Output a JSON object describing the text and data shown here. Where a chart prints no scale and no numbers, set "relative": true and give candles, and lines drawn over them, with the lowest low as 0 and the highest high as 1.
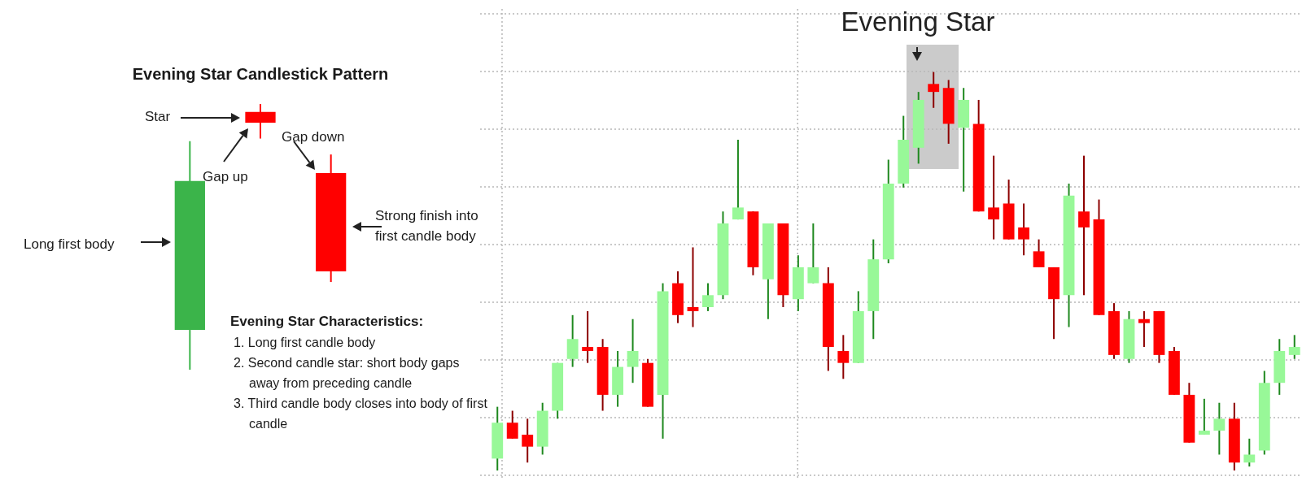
{
  "chart_data": [
    {
      "type": "candlestick",
      "title": "Evening Star Candlestick Pattern",
      "relative": true,
      "categories": [
        null,
        null,
        null
      ],
      "ohlc": [
        [
          0.15,
          0.86,
          0,
          0.71
        ],
        [
          0.97,
          1,
          0.87,
          0.93
        ],
        [
          0.74,
          0.81,
          0.33,
          0.37
        ]
      ],
      "colors": [
        "#3bb44a",
        "#ff0000",
        "#ff0000"
      ],
      "annotations": [
        "Star",
        "Gap up",
        "Gap down",
        "Long first body",
        "Strong finish into first candle body",
        "Evening Star Characteristics:",
        "1. Long first candle body",
        "2. Second candle star: short body gaps away from preceding candle",
        "3. Third candle body closes into body of first candle"
      ]
    },
    {
      "type": "candlestick",
      "relative": true,
      "grid": true,
      "categories": [
        null,
        null,
        null,
        null,
        null,
        null,
        null,
        null,
        null,
        null,
        null,
        null,
        null,
        null,
        null,
        null,
        null,
        null,
        null,
        null,
        null,
        null,
        null,
        null,
        null,
        null,
        null,
        null,
        null,
        null,
        null,
        null,
        null,
        null,
        null,
        null,
        null,
        null,
        null,
        null,
        null,
        null,
        null,
        null,
        null,
        null,
        null,
        null,
        null,
        null,
        null,
        null,
        null,
        null
      ],
      "ohlc": [
        [
          0.03,
          0.16,
          0,
          0.12
        ],
        [
          0.12,
          0.15,
          0.08,
          0.08
        ],
        [
          0.09,
          0.13,
          0.02,
          0.06
        ],
        [
          0.06,
          0.17,
          0.04,
          0.15
        ],
        [
          0.15,
          0.27,
          0.13,
          0.27
        ],
        [
          0.28,
          0.39,
          0.26,
          0.33
        ],
        [
          0.31,
          0.4,
          0.27,
          0.3
        ],
        [
          0.31,
          0.33,
          0.15,
          0.19
        ],
        [
          0.19,
          0.3,
          0.16,
          0.26
        ],
        [
          0.26,
          0.38,
          0.22,
          0.3
        ],
        [
          0.27,
          0.28,
          0.16,
          0.16
        ],
        [
          0.19,
          0.47,
          0.08,
          0.45
        ],
        [
          0.47,
          0.5,
          0.37,
          0.39
        ],
        [
          0.41,
          0.56,
          0.36,
          0.4
        ],
        [
          0.41,
          0.47,
          0.4,
          0.44
        ],
        [
          0.44,
          0.65,
          0.43,
          0.62
        ],
        [
          0.63,
          0.83,
          0.63,
          0.66
        ],
        [
          0.65,
          0.65,
          0.49,
          0.51
        ],
        [
          0.48,
          0.62,
          0.38,
          0.62
        ],
        [
          0.62,
          0.62,
          0.41,
          0.44
        ],
        [
          0.43,
          0.54,
          0.4,
          0.51
        ],
        [
          0.47,
          0.62,
          0.47,
          0.51
        ],
        [
          0.47,
          0.51,
          0.25,
          0.31
        ],
        [
          0.3,
          0.34,
          0.23,
          0.27
        ],
        [
          0.27,
          0.45,
          0.27,
          0.4
        ],
        [
          0.4,
          0.58,
          0.33,
          0.53
        ],
        [
          0.53,
          0.78,
          0.52,
          0.72
        ],
        [
          0.72,
          0.89,
          0.71,
          0.83
        ],
        [
          0.81,
          0.95,
          0.77,
          0.93
        ],
        [
          0.97,
          1,
          0.91,
          0.95
        ],
        [
          0.96,
          0.98,
          0.82,
          0.87
        ],
        [
          0.86,
          0.96,
          0.7,
          0.93
        ],
        [
          0.87,
          0.93,
          0.65,
          0.65
        ],
        [
          0.66,
          0.79,
          0.58,
          0.63
        ],
        [
          0.67,
          0.73,
          0.58,
          0.58
        ],
        [
          0.61,
          0.67,
          0.54,
          0.58
        ],
        [
          0.55,
          0.58,
          0.51,
          0.51
        ],
        [
          0.51,
          0.51,
          0.33,
          0.43
        ],
        [
          0.44,
          0.72,
          0.36,
          0.69
        ],
        [
          0.65,
          0.79,
          0.44,
          0.61
        ],
        [
          0.63,
          0.68,
          0.39,
          0.39
        ],
        [
          0.4,
          0.42,
          0.28,
          0.29
        ],
        [
          0.28,
          0.4,
          0.27,
          0.38
        ],
        [
          0.38,
          0.4,
          0.31,
          0.37
        ],
        [
          0.4,
          0.4,
          0.27,
          0.29
        ],
        [
          0.3,
          0.31,
          0.19,
          0.19
        ],
        [
          0.19,
          0.22,
          0.07,
          0.07
        ],
        [
          0.09,
          0.18,
          0.09,
          0.1
        ],
        [
          0.1,
          0.17,
          0.04,
          0.13
        ],
        [
          0.13,
          0.17,
          0,
          0.02
        ],
        [
          0.02,
          0.08,
          0.01,
          0.04
        ],
        [
          0.05,
          0.25,
          0.04,
          0.22
        ],
        [
          0.22,
          0.33,
          0.19,
          0.3
        ],
        [
          0.29,
          0.34,
          0.28,
          0.31
        ]
      ],
      "colors": [
        "#98f898",
        "#ff0000",
        "#ff0000",
        "#98f898",
        "#98f898",
        "#98f898",
        "#ff0000",
        "#ff0000",
        "#98f898",
        "#98f898",
        "#ff0000",
        "#98f898",
        "#ff0000",
        "#ff0000",
        "#98f898",
        "#98f898",
        "#98f898",
        "#ff0000",
        "#98f898",
        "#ff0000",
        "#98f898",
        "#98f898",
        "#ff0000",
        "#ff0000",
        "#98f898",
        "#98f898",
        "#98f898",
        "#98f898",
        "#98f898",
        "#ff0000",
        "#ff0000",
        "#98f898",
        "#ff0000",
        "#ff0000",
        "#ff0000",
        "#ff0000",
        "#ff0000",
        "#ff0000",
        "#98f898",
        "#ff0000",
        "#ff0000",
        "#ff0000",
        "#98f898",
        "#ff0000",
        "#ff0000",
        "#ff0000",
        "#ff0000",
        "#98f898",
        "#98f898",
        "#ff0000",
        "#98f898",
        "#98f898",
        "#98f898",
        "#98f898"
      ],
      "annotations": [
        "Evening Star"
      ]
    }
  ]
}
